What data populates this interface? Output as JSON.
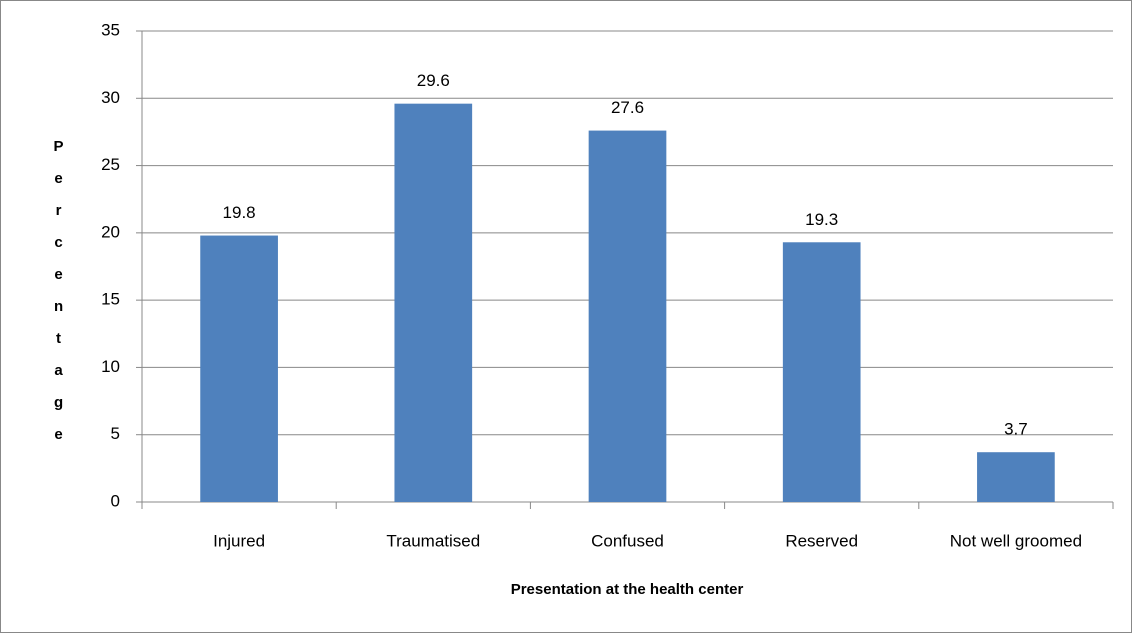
{
  "chart_data": {
    "type": "bar",
    "x_label": "Presentation at the health center",
    "y_label": "Percentage",
    "categories": [
      "Injured",
      "Traumatised",
      "Confused",
      "Reserved",
      "Not well groomed"
    ],
    "values": [
      19.8,
      29.6,
      27.6,
      19.3,
      3.7
    ],
    "color": "#4f81bd",
    "ylim": [
      0,
      35
    ],
    "yticks": [
      0,
      5,
      10,
      15,
      20,
      25,
      30,
      35
    ],
    "grid": true
  }
}
